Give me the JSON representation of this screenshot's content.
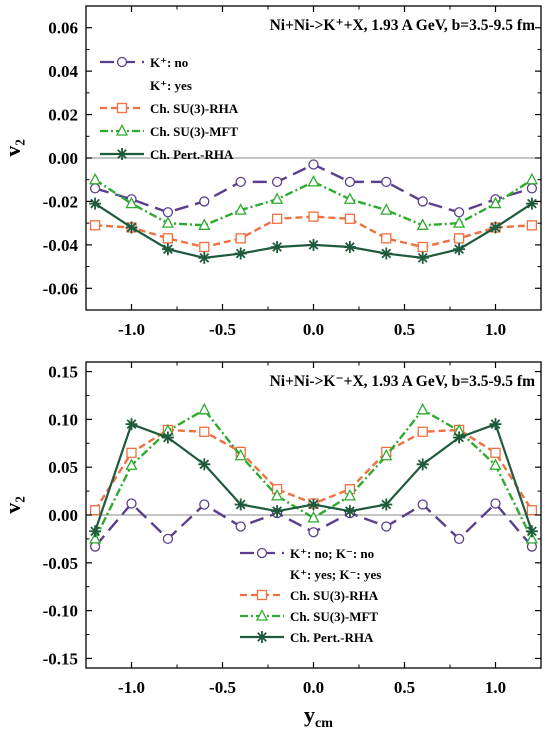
{
  "chart_data": [
    {
      "type": "line",
      "title": "Ni+Ni->K⁺+X, 1.93 A GeV, b=3.5-9.5 fm",
      "ylabel": "v₂",
      "xlim": [
        -1.25,
        1.25
      ],
      "ylim": [
        -0.07,
        0.07
      ],
      "yticks": [
        "-0.06",
        "-0.04",
        "-0.02",
        "0.00",
        "0.02",
        "0.04",
        "0.06"
      ],
      "xticks": [
        "-1.0",
        "-0.5",
        "0.0",
        "0.5",
        "1.0"
      ],
      "legend_subheader": "K⁺: yes",
      "series": [
        {
          "name": "K⁺: no",
          "color": "#5b3f8c",
          "marker": "circle",
          "dash": "dashed-long",
          "x": [
            -1.2,
            -1.0,
            -0.8,
            -0.6,
            -0.4,
            -0.2,
            0.0,
            0.2,
            0.4,
            0.6,
            0.8,
            1.0,
            1.2
          ],
          "y": [
            -0.014,
            -0.019,
            -0.025,
            -0.02,
            -0.011,
            -0.011,
            -0.003,
            -0.011,
            -0.011,
            -0.02,
            -0.025,
            -0.019,
            -0.014
          ]
        },
        {
          "name": "Ch. SU(3)-RHA",
          "color": "#f07040",
          "marker": "square",
          "dash": "dashed",
          "x": [
            -1.2,
            -1.0,
            -0.8,
            -0.6,
            -0.4,
            -0.2,
            0.0,
            0.2,
            0.4,
            0.6,
            0.8,
            1.0,
            1.2
          ],
          "y": [
            -0.031,
            -0.032,
            -0.037,
            -0.041,
            -0.037,
            -0.028,
            -0.027,
            -0.028,
            -0.037,
            -0.041,
            -0.037,
            -0.032,
            -0.031
          ]
        },
        {
          "name": "Ch. SU(3)-MFT",
          "color": "#2eaa2e",
          "marker": "triangle",
          "dash": "dashdot",
          "x": [
            -1.2,
            -1.0,
            -0.8,
            -0.6,
            -0.4,
            -0.2,
            0.0,
            0.2,
            0.4,
            0.6,
            0.8,
            1.0,
            1.2
          ],
          "y": [
            -0.01,
            -0.021,
            -0.03,
            -0.031,
            -0.024,
            -0.019,
            -0.011,
            -0.019,
            -0.024,
            -0.031,
            -0.03,
            -0.021,
            -0.01
          ]
        },
        {
          "name": "Ch. Pert.-RHA",
          "color": "#1f5a3c",
          "marker": "star",
          "dash": "solid",
          "x": [
            -1.2,
            -1.0,
            -0.8,
            -0.6,
            -0.4,
            -0.2,
            0.0,
            0.2,
            0.4,
            0.6,
            0.8,
            1.0,
            1.2
          ],
          "y": [
            -0.021,
            -0.032,
            -0.042,
            -0.046,
            -0.044,
            -0.041,
            -0.04,
            -0.041,
            -0.044,
            -0.046,
            -0.042,
            -0.032,
            -0.021
          ]
        }
      ]
    },
    {
      "type": "line",
      "title": "Ni+Ni->K⁻+X, 1.93 A GeV, b=3.5-9.5 fm",
      "xlabel": "y_cm",
      "ylabel": "v₂",
      "xlim": [
        -1.25,
        1.25
      ],
      "ylim": [
        -0.16,
        0.16
      ],
      "yticks": [
        "-0.15",
        "-0.10",
        "-0.05",
        "0.00",
        "0.05",
        "0.10",
        "0.15"
      ],
      "xticks": [
        "-1.0",
        "-0.5",
        "0.0",
        "0.5",
        "1.0"
      ],
      "legend_subheader": "K⁺: yes; K⁻: yes",
      "series": [
        {
          "name": "K⁺: no;  K⁻: no",
          "color": "#5b3f8c",
          "marker": "circle",
          "dash": "dashed-long",
          "x": [
            -1.2,
            -1.0,
            -0.8,
            -0.6,
            -0.4,
            -0.2,
            0.0,
            0.2,
            0.4,
            0.6,
            0.8,
            1.0,
            1.2
          ],
          "y": [
            -0.033,
            0.012,
            -0.025,
            0.011,
            -0.012,
            0.002,
            -0.018,
            0.002,
            -0.012,
            0.011,
            -0.025,
            0.012,
            -0.033
          ]
        },
        {
          "name": "Ch. SU(3)-RHA",
          "color": "#f07040",
          "marker": "square",
          "dash": "dashed",
          "x": [
            -1.2,
            -1.0,
            -0.8,
            -0.6,
            -0.4,
            -0.2,
            0.0,
            0.2,
            0.4,
            0.6,
            0.8,
            1.0,
            1.2
          ],
          "y": [
            0.005,
            0.065,
            0.089,
            0.087,
            0.066,
            0.027,
            0.012,
            0.027,
            0.066,
            0.087,
            0.089,
            0.065,
            0.005
          ]
        },
        {
          "name": "Ch. SU(3)-MFT",
          "color": "#2eaa2e",
          "marker": "triangle",
          "dash": "dashdot",
          "x": [
            -1.2,
            -1.0,
            -0.8,
            -0.6,
            -0.4,
            -0.2,
            0.0,
            0.2,
            0.4,
            0.6,
            0.8,
            1.0,
            1.2
          ],
          "y": [
            -0.025,
            0.052,
            0.088,
            0.11,
            0.062,
            0.02,
            -0.003,
            0.02,
            0.062,
            0.11,
            0.088,
            0.052,
            -0.025
          ]
        },
        {
          "name": "Ch. Pert.-RHA",
          "color": "#1f5a3c",
          "marker": "star",
          "dash": "solid",
          "x": [
            -1.2,
            -1.0,
            -0.8,
            -0.6,
            -0.4,
            -0.2,
            0.0,
            0.2,
            0.4,
            0.6,
            0.8,
            1.0,
            1.2
          ],
          "y": [
            -0.017,
            0.095,
            0.081,
            0.053,
            0.011,
            0.004,
            0.011,
            0.004,
            0.011,
            0.053,
            0.081,
            0.095,
            -0.017
          ]
        }
      ]
    }
  ]
}
